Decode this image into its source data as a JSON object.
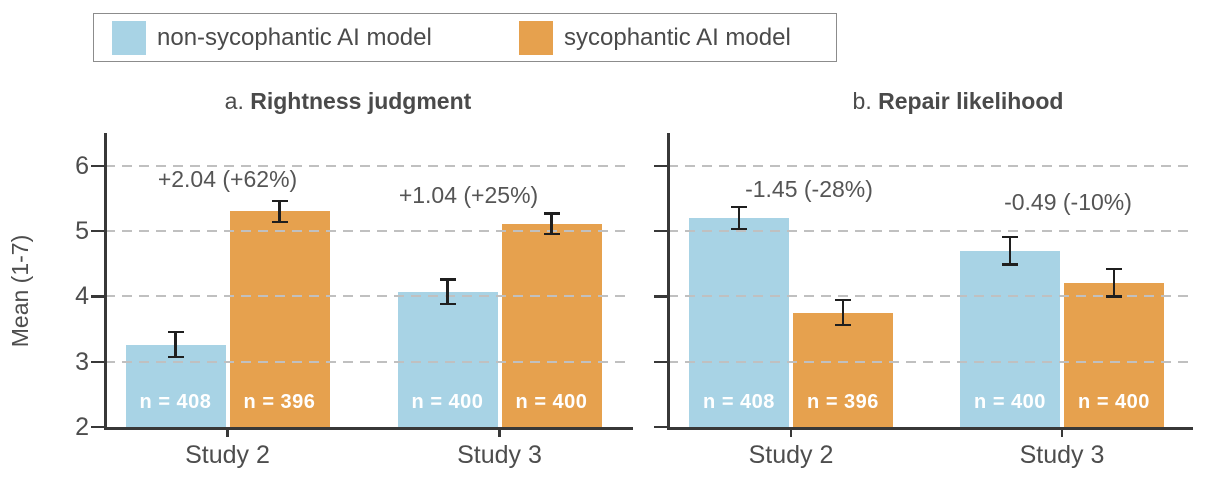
{
  "figure": {
    "colors": {
      "non_sycophantic": "#A8D3E5",
      "sycophantic": "#E6A14E",
      "axis": "#383838",
      "grid": "#C0C0C0",
      "text": "#4D4D4D",
      "annotation": "#555555",
      "error_bar": "#1F1F1F",
      "n_label_text": "#FFFFFF",
      "legend_border": "#8C8C8C",
      "background": "#FFFFFF"
    }
  },
  "legend": {
    "items": [
      {
        "label": "non-sycophantic AI model",
        "color_key": "non_sycophantic"
      },
      {
        "label": "sycophantic AI model",
        "color_key": "sycophantic"
      }
    ]
  },
  "y_axis": {
    "label": "Mean (1-7)",
    "min": 2,
    "max": 6.5,
    "ticks": [
      2,
      3,
      4,
      5,
      6
    ],
    "gridlines": [
      3,
      4,
      5,
      6
    ]
  },
  "chart_data": [
    {
      "type": "bar",
      "panel_prefix": "a.",
      "title": "Rightness judgment",
      "categories": [
        "Study 2",
        "Study 3"
      ],
      "series": [
        {
          "name": "non-sycophantic AI model",
          "color_key": "non_sycophantic",
          "values": [
            3.26,
            4.07
          ],
          "errors": [
            0.19,
            0.19
          ],
          "n_labels": [
            "n = 408",
            "n = 400"
          ]
        },
        {
          "name": "sycophantic AI model",
          "color_key": "sycophantic",
          "values": [
            5.3,
            5.11
          ],
          "errors": [
            0.16,
            0.16
          ],
          "n_labels": [
            "n = 396",
            "n = 400"
          ]
        }
      ],
      "annotations": [
        {
          "text": "+2.04 (+62%)",
          "y": 5.8
        },
        {
          "text": "+1.04 (+25%)",
          "y": 5.55
        }
      ],
      "ylabel": "Mean (1-7)",
      "ylim": [
        2,
        6.5
      ],
      "grid": "dashed-horizontal",
      "legend_position": "top"
    },
    {
      "type": "bar",
      "panel_prefix": "b.",
      "title": "Repair likelihood",
      "categories": [
        "Study 2",
        "Study 3"
      ],
      "series": [
        {
          "name": "non-sycophantic AI model",
          "color_key": "non_sycophantic",
          "values": [
            5.2,
            4.7
          ],
          "errors": [
            0.17,
            0.21
          ],
          "n_labels": [
            "n = 408",
            "n = 400"
          ]
        },
        {
          "name": "sycophantic AI model",
          "color_key": "sycophantic",
          "values": [
            3.75,
            4.21
          ],
          "errors": [
            0.19,
            0.21
          ],
          "n_labels": [
            "n = 396",
            "n = 400"
          ]
        }
      ],
      "annotations": [
        {
          "text": "-1.45 (-28%)",
          "y": 5.64
        },
        {
          "text": "-0.49 (-10%)",
          "y": 5.45
        }
      ],
      "ylabel": "Mean (1-7)",
      "ylim": [
        2,
        6.5
      ],
      "grid": "dashed-horizontal",
      "legend_position": "top"
    }
  ]
}
